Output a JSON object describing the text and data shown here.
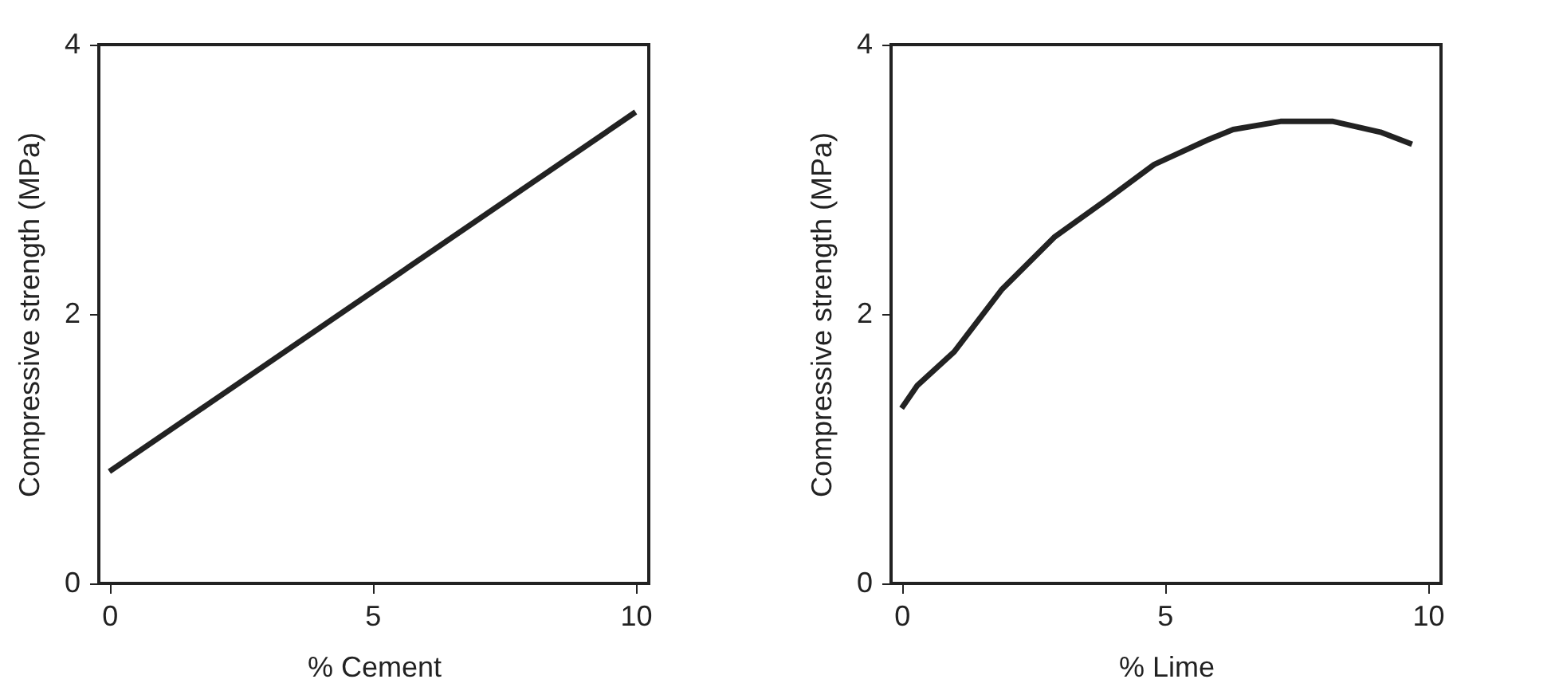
{
  "chart_data": [
    {
      "type": "line",
      "xlabel": "% Cement",
      "ylabel": "Compressive strength (MPa)",
      "xlim": [
        -0.2,
        10.25
      ],
      "ylim": [
        0,
        4
      ],
      "xticks": [
        0,
        5,
        10
      ],
      "yticks": [
        0,
        2,
        4
      ],
      "grid": false,
      "series": [
        {
          "color": "#222222",
          "x": [
            0,
            10
          ],
          "values": [
            0.83,
            3.5
          ]
        }
      ]
    },
    {
      "type": "line",
      "xlabel": "% Lime",
      "ylabel": "Compressive strength (MPa)",
      "xlim": [
        -0.2,
        10.25
      ],
      "ylim": [
        0,
        4
      ],
      "xticks": [
        0,
        5,
        10
      ],
      "yticks": [
        0,
        2,
        4
      ],
      "grid": false,
      "series": [
        {
          "color": "#222222",
          "x": [
            0,
            0.3,
            1.0,
            1.9,
            2.9,
            3.9,
            4.8,
            5.8,
            6.3,
            7.2,
            8.2,
            9.1,
            9.7
          ],
          "values": [
            1.3,
            1.47,
            1.72,
            2.18,
            2.57,
            2.85,
            3.11,
            3.29,
            3.37,
            3.43,
            3.43,
            3.35,
            3.26
          ]
        }
      ]
    }
  ]
}
